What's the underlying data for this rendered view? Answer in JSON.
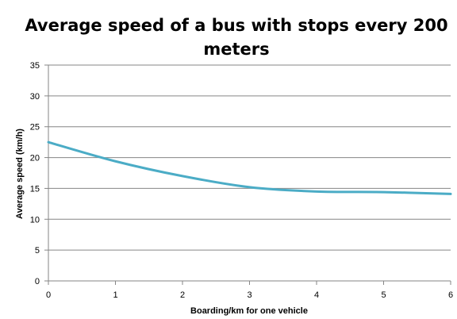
{
  "chart_data": {
    "type": "line",
    "title_lines": [
      "Average speed of a bus with stops every 200",
      "meters"
    ],
    "xlabel": "Boarding/km  for one vehicle",
    "ylabel": "Average speed  (km/h)",
    "xlim": [
      0,
      6
    ],
    "ylim": [
      0,
      35
    ],
    "x_ticks": [
      "0",
      "1",
      "2",
      "3",
      "4",
      "5",
      "6"
    ],
    "y_ticks": [
      "0",
      "5",
      "10",
      "15",
      "20",
      "25",
      "30",
      "35"
    ],
    "grid": "horizontal",
    "legend": "none",
    "series": [
      {
        "color": "#4bacc6",
        "x": [
          0,
          1,
          2,
          3,
          4,
          5,
          6
        ],
        "values": [
          22.5,
          19.4,
          17.0,
          15.2,
          14.5,
          14.4,
          14.1
        ]
      }
    ]
  }
}
